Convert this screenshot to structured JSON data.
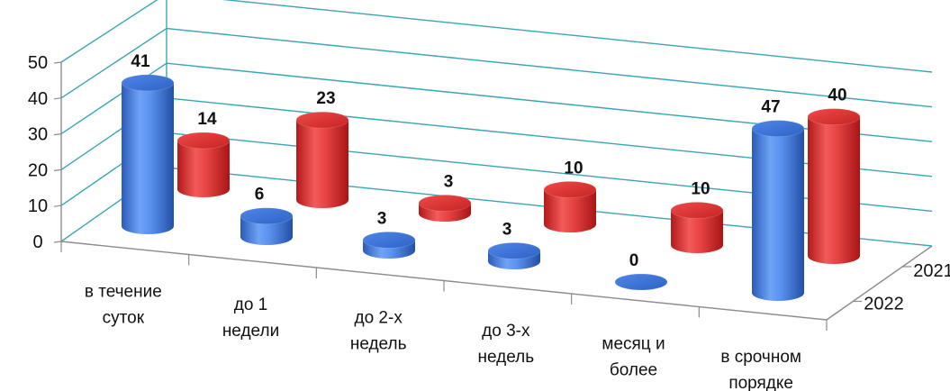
{
  "chart_data": {
    "type": "bar",
    "categories": [
      [
        "в течение",
        "суток"
      ],
      [
        "до 1",
        "недели"
      ],
      [
        "до 2-х",
        "недель"
      ],
      [
        "до 3-х",
        "недель"
      ],
      [
        "месяц и",
        "более"
      ],
      [
        "в срочном",
        "порядке"
      ]
    ],
    "series": [
      {
        "name": "2022",
        "values": [
          41,
          6,
          3,
          3,
          0,
          47
        ],
        "color": "#3d79dc"
      },
      {
        "name": "2021",
        "values": [
          14,
          23,
          3,
          10,
          10,
          40
        ],
        "color": "#e02a2a"
      }
    ],
    "ylim": [
      0,
      50
    ],
    "yticks": [
      "0",
      "10",
      "20",
      "30",
      "40",
      "50"
    ],
    "grid": true,
    "data_labels": true,
    "style": "3d-cylinder"
  }
}
